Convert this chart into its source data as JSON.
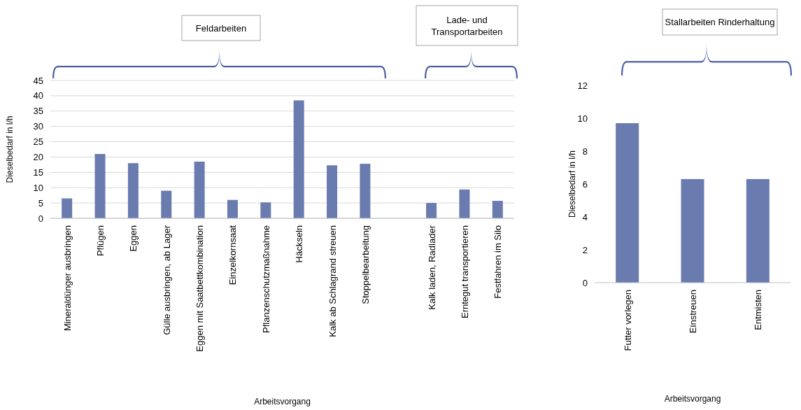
{
  "chart_data": [
    {
      "type": "bar",
      "categories": [
        "Mineraldünger ausbringen",
        "Pflügen",
        "Eggen",
        "Gülle ausbringen, ab Lager",
        "Eggen mit Saatbettkombination",
        "Einzelkornsaat",
        "Pflanzenschutzmaßnahme",
        "Häckseln",
        "Kalk ab Schlagrand streuen",
        "Stoppelbearbeitung",
        null,
        "Kalk laden, Radlader",
        "Erntegut transportieren",
        "Festfahren im Silo"
      ],
      "values": [
        6.5,
        21,
        18,
        9,
        18.5,
        6,
        5.2,
        38.5,
        17.3,
        17.8,
        null,
        5,
        9.4,
        5.7
      ],
      "color": "#6a7bb0",
      "ylim": [
        0,
        45
      ],
      "yticks": [
        0,
        5,
        10,
        15,
        20,
        25,
        30,
        35,
        40,
        45
      ],
      "grid": "y",
      "xlabel": "Arbeitsvorgang",
      "ylabel": "Dieselbedarf in l/h",
      "annotations": [
        "Feldarbeiten",
        "Lade- und Transportarbeiten"
      ]
    },
    {
      "type": "bar",
      "categories": [
        "Futter vorlegen",
        "Einstreuen",
        "Entmisten"
      ],
      "values": [
        9.7,
        6.3,
        6.3
      ],
      "color": "#6a7bb0",
      "ylim": [
        0,
        12
      ],
      "yticks": [
        0,
        2,
        4,
        6,
        8,
        10,
        12
      ],
      "grid": false,
      "xlabel": "Arbeitsvorgang",
      "ylabel": "Dieselbedarf in l/h",
      "annotations": [
        "Stallarbeiten Rinderhaltung"
      ]
    }
  ]
}
